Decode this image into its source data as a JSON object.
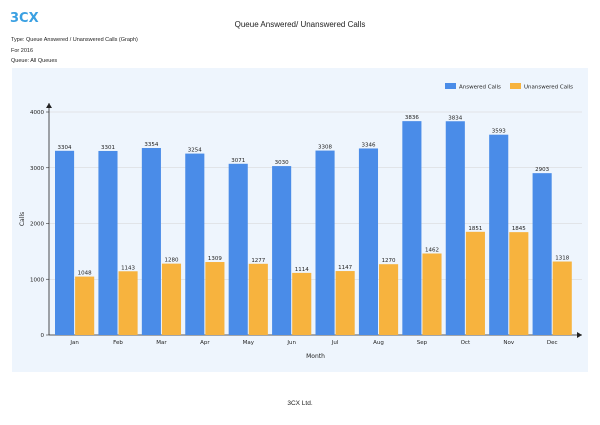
{
  "report": {
    "logo_text": "3CX",
    "title": "Queue Answered/ Unanswered Calls",
    "type_line": "Type: Queue Answered / Unanswered Calls (Graph)",
    "period_line": "For 2016",
    "queue_line": "Queue: All Queues",
    "footer": "3CX Ltd."
  },
  "colors": {
    "answered": "#4a8ce8",
    "unanswered": "#f7b33e",
    "logo_blue": "#3aa0e2"
  },
  "chart_data": {
    "type": "bar",
    "categories": [
      "Jan",
      "Feb",
      "Mar",
      "Apr",
      "May",
      "Jun",
      "Jul",
      "Aug",
      "Sep",
      "Oct",
      "Nov",
      "Dec"
    ],
    "series": [
      {
        "name": "Answered Calls",
        "values": [
          3304,
          3301,
          3354,
          3254,
          3071,
          3030,
          3308,
          3346,
          3836,
          3834,
          3593,
          2903
        ]
      },
      {
        "name": "Unanswered Calls",
        "values": [
          1048,
          1143,
          1280,
          1309,
          1277,
          1114,
          1147,
          1270,
          1462,
          1851,
          1845,
          1318
        ]
      }
    ],
    "xlabel": "Month",
    "ylabel": "Calls",
    "ylim": [
      0,
      4000
    ],
    "yticks": [
      0,
      1000,
      2000,
      3000,
      4000
    ],
    "grid": true,
    "legend_position": "top-right"
  }
}
